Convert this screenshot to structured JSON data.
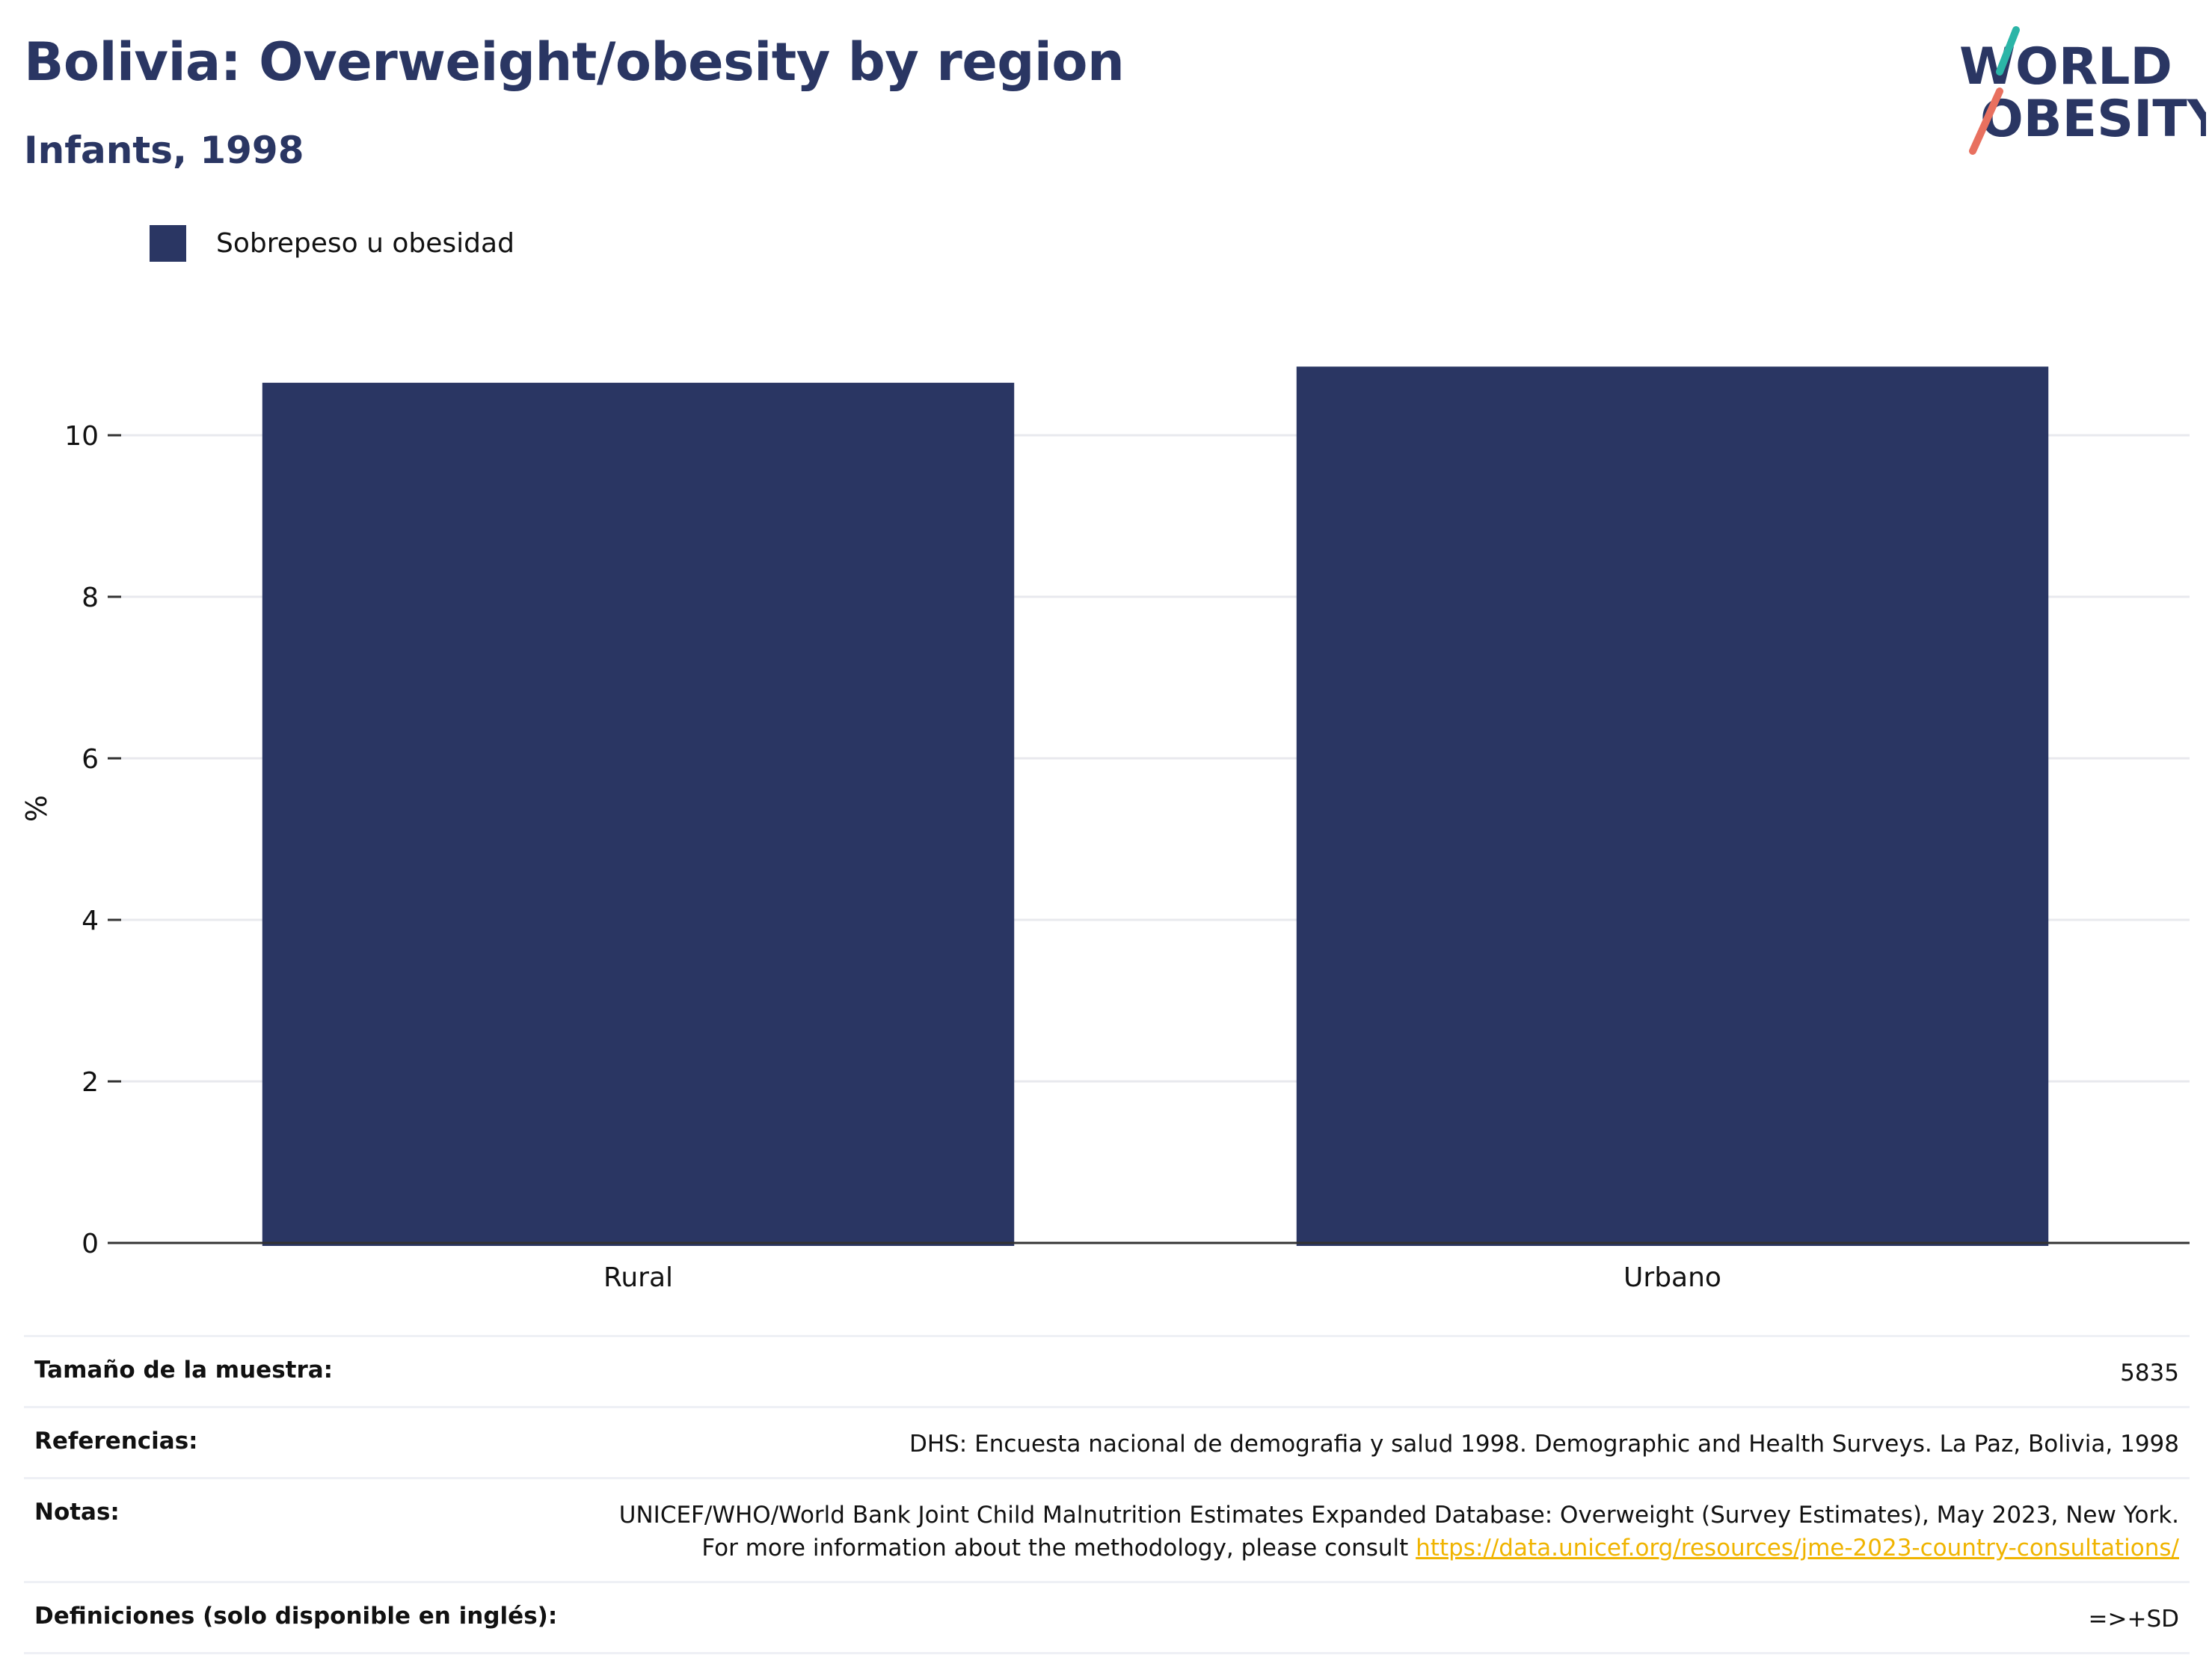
{
  "header": {
    "title": "Bolivia: Overweight/obesity by region",
    "subtitle": "Infants, 1998"
  },
  "logo": {
    "line1": "WORLD",
    "line2": "OBESITY",
    "colors": {
      "navy": "#2a3663",
      "teal": "#2bb5a7",
      "coral": "#e8705f"
    }
  },
  "chart_data": {
    "type": "bar",
    "categories": [
      "Rural",
      "Urbano"
    ],
    "series": [
      {
        "name": "Sobrepeso u obesidad",
        "values": [
          10.65,
          10.85
        ],
        "color": "#2a3663"
      }
    ],
    "ylabel": "%",
    "xlabel": "",
    "ylim": [
      0,
      11.5
    ],
    "yticks": [
      0,
      2,
      4,
      6,
      8,
      10
    ],
    "grid": true,
    "legend_position": "top-left"
  },
  "info": {
    "rows": [
      {
        "label": "Tamaño de la muestra:",
        "value": "5835"
      },
      {
        "label": "Referencias:",
        "value": "DHS: Encuesta nacional de demografia y salud 1998. Demographic and Health Surveys. La Paz, Bolivia, 1998"
      },
      {
        "label": "Notas:",
        "value": "UNICEF/WHO/World Bank Joint Child Malnutrition Estimates Expanded Database: Overweight (Survey Estimates), May 2023, New York. For more information about the methodology, please consult ",
        "link": "https://data.unicef.org/resources/jme-2023-country-consultations/"
      },
      {
        "label": "Definiciones (solo disponible en inglés):",
        "value": "=>+SD"
      }
    ]
  }
}
